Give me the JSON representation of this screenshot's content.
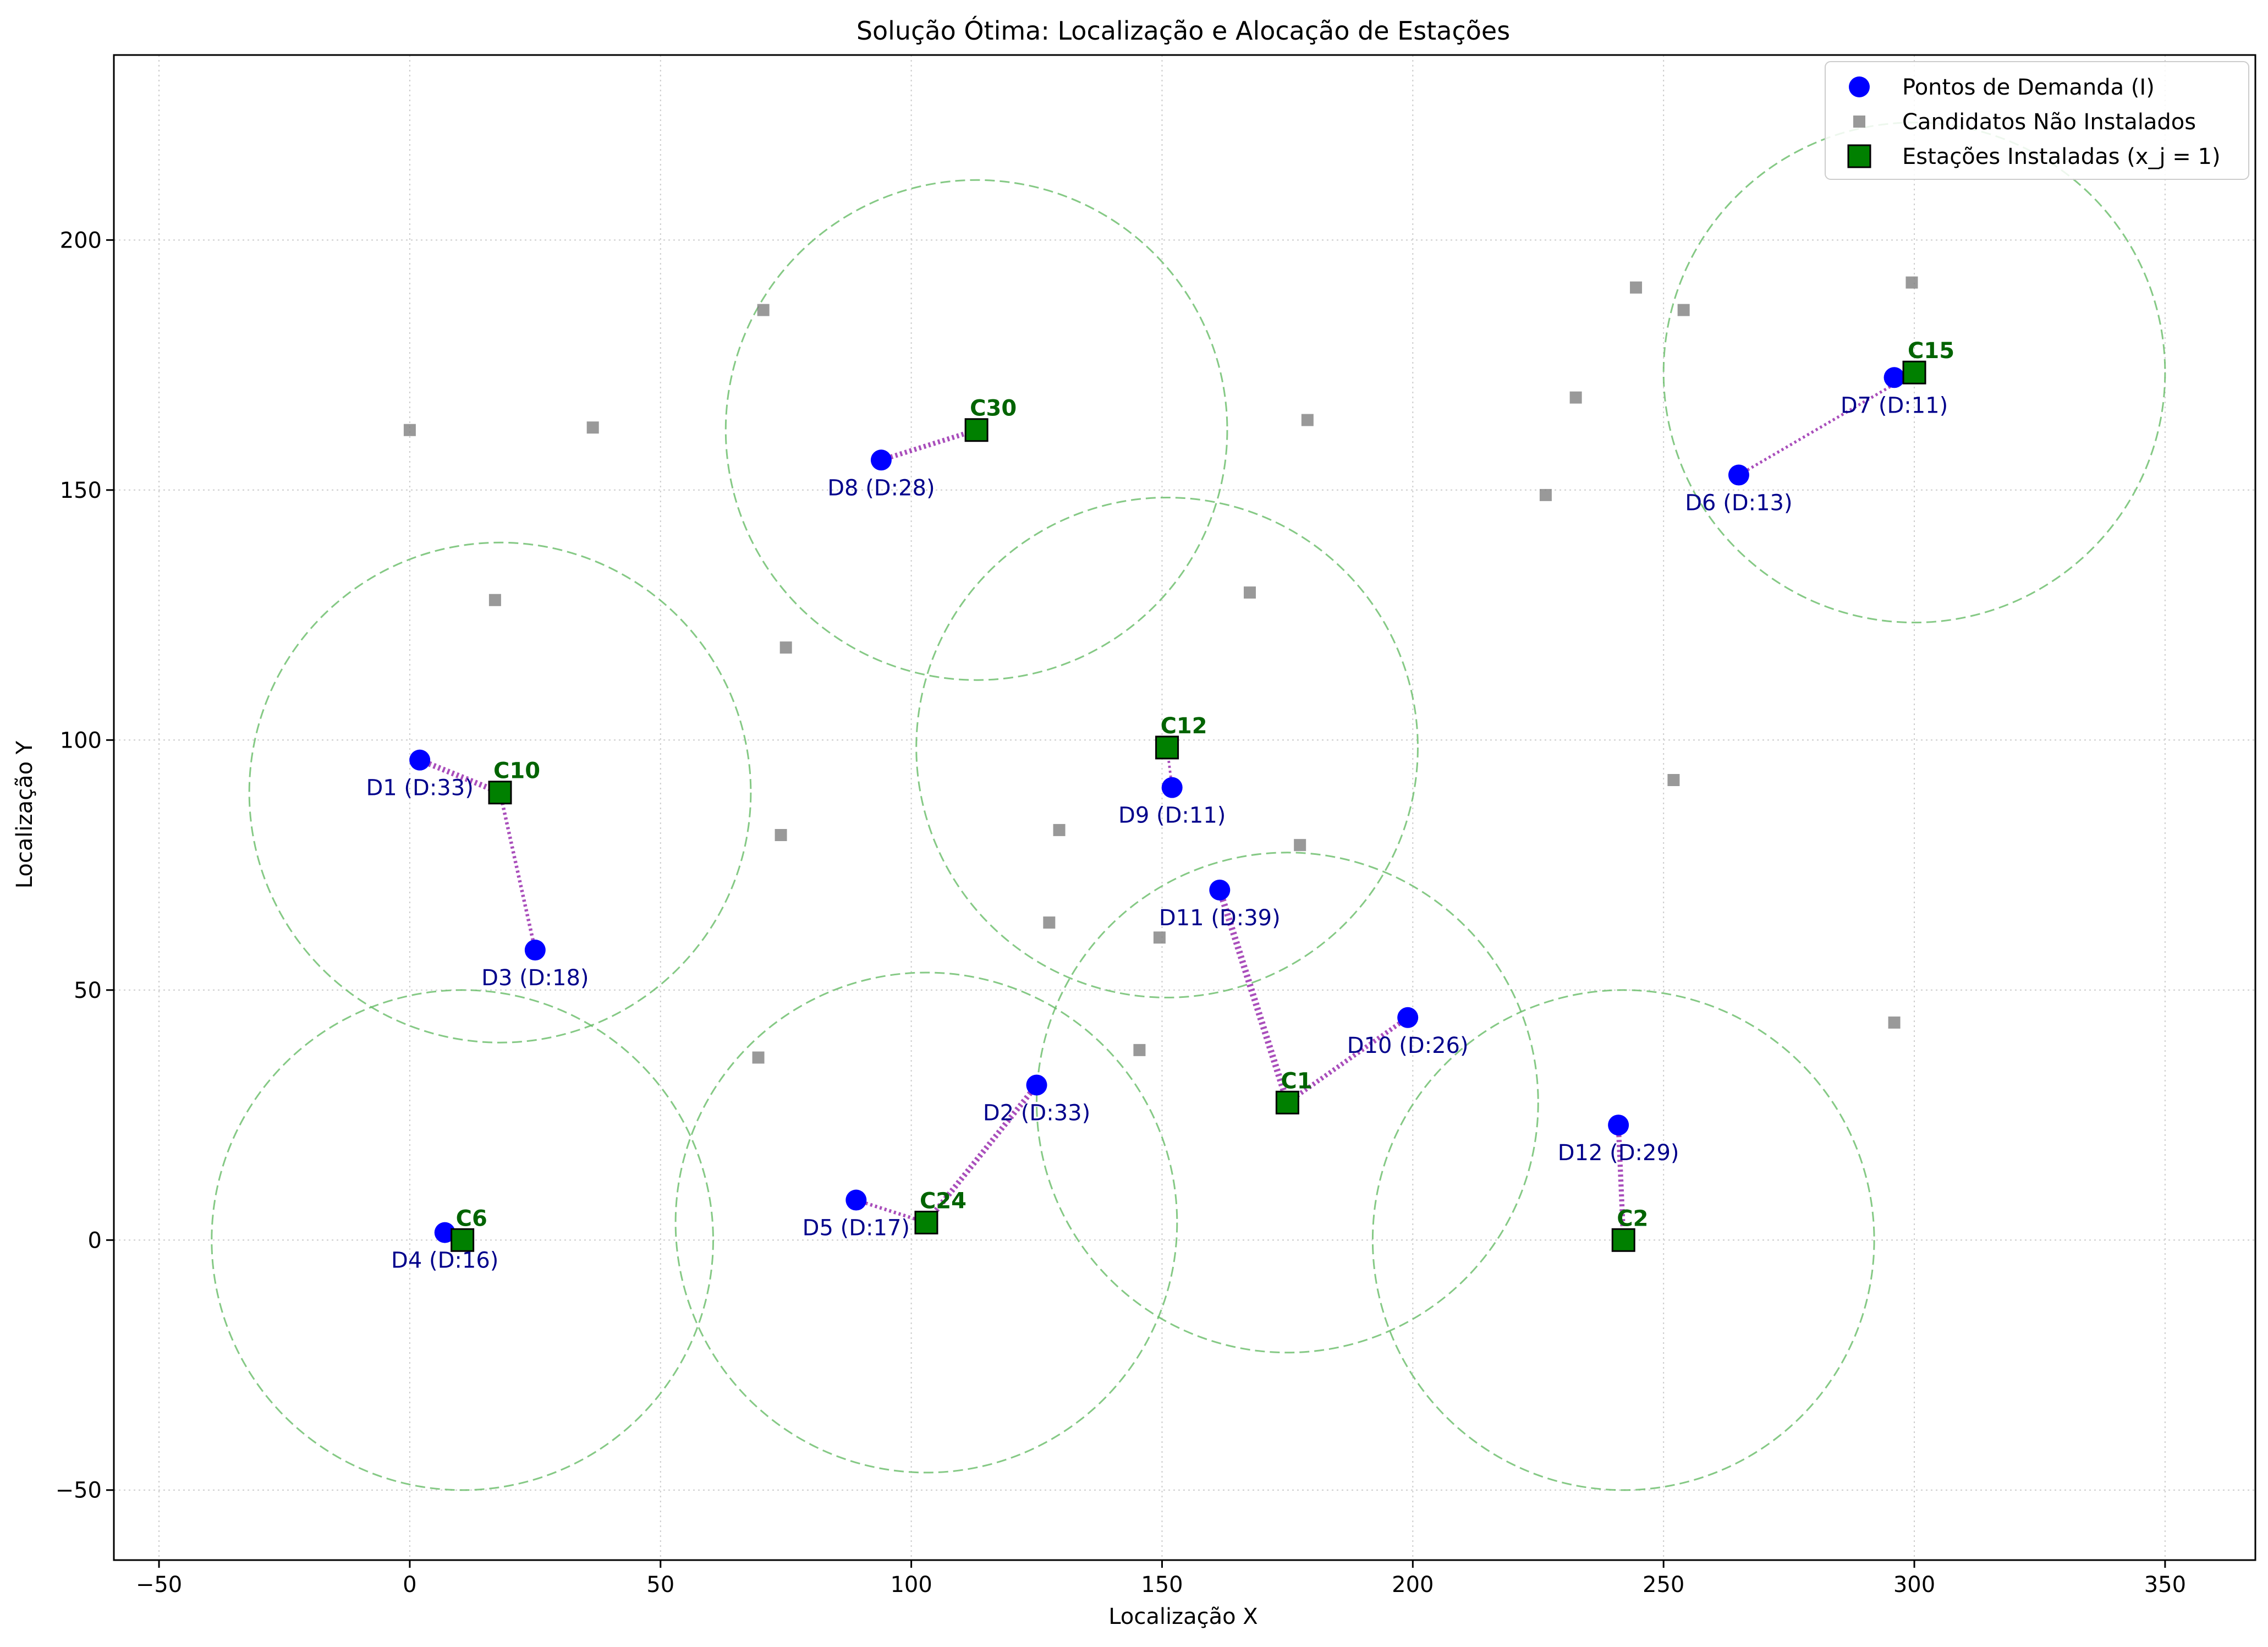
{
  "chart_data": {
    "type": "scatter",
    "title": "Solução Ótima: Localização e Alocação de Estações",
    "xlabel": "Localização X",
    "ylabel": "Localização Y",
    "xlim": [
      -59,
      368
    ],
    "ylim": [
      -64,
      237
    ],
    "xticks": [
      -50,
      0,
      50,
      100,
      150,
      200,
      250,
      300,
      350
    ],
    "yticks": [
      -50,
      0,
      50,
      100,
      150,
      200
    ],
    "grid": true,
    "legend_position": "top-right",
    "coverage_radius": 50,
    "colors": {
      "demand": "#0000ff",
      "candidate": "#808080",
      "station": "#008000",
      "station_label": "#006400",
      "demand_label": "#00008b",
      "assignment": "#9b30b0",
      "coverage": "#66bb66"
    },
    "legend": [
      {
        "key": "demand",
        "label": "Pontos de Demanda (I)"
      },
      {
        "key": "candidate",
        "label": "Candidatos Não Instalados"
      },
      {
        "key": "station",
        "label": "Estações Instaladas (x_j = 1)"
      }
    ],
    "demand_points": [
      {
        "label": "D1 (D:33)",
        "x": 2,
        "y": 96
      },
      {
        "label": "D2 (D:33)",
        "x": 125,
        "y": 31
      },
      {
        "label": "D3 (D:18)",
        "x": 25,
        "y": 58
      },
      {
        "label": "D4 (D:16)",
        "x": 7,
        "y": 1.5
      },
      {
        "label": "D5 (D:17)",
        "x": 89,
        "y": 8
      },
      {
        "label": "D6 (D:13)",
        "x": 265,
        "y": 153
      },
      {
        "label": "D7 (D:11)",
        "x": 296,
        "y": 172.5
      },
      {
        "label": "D8 (D:28)",
        "x": 94,
        "y": 156
      },
      {
        "label": "D9 (D:11)",
        "x": 152,
        "y": 90.5
      },
      {
        "label": "D10 (D:26)",
        "x": 199,
        "y": 44.5
      },
      {
        "label": "D11 (D:39)",
        "x": 161.5,
        "y": 70
      },
      {
        "label": "D12 (D:29)",
        "x": 241,
        "y": 23
      }
    ],
    "candidates": [
      {
        "x": 0,
        "y": 162
      },
      {
        "x": 36.5,
        "y": 162.5
      },
      {
        "x": 17,
        "y": 128
      },
      {
        "x": 70.5,
        "y": 186
      },
      {
        "x": 75,
        "y": 118.5
      },
      {
        "x": 74,
        "y": 81
      },
      {
        "x": 69.5,
        "y": 36.5
      },
      {
        "x": 129.5,
        "y": 82
      },
      {
        "x": 127.5,
        "y": 63.5
      },
      {
        "x": 149.5,
        "y": 60.5
      },
      {
        "x": 145.5,
        "y": 38
      },
      {
        "x": 167.5,
        "y": 129.5
      },
      {
        "x": 179,
        "y": 164
      },
      {
        "x": 177.5,
        "y": 79
      },
      {
        "x": 226.5,
        "y": 149
      },
      {
        "x": 232.5,
        "y": 168.5
      },
      {
        "x": 244.5,
        "y": 190.5
      },
      {
        "x": 254,
        "y": 186
      },
      {
        "x": 252,
        "y": 92
      },
      {
        "x": 299.5,
        "y": 191.5
      },
      {
        "x": 296,
        "y": 43.5
      }
    ],
    "stations": [
      {
        "label": "C1",
        "x": 175,
        "y": 27.5
      },
      {
        "label": "C2",
        "x": 242,
        "y": 0
      },
      {
        "label": "C6",
        "x": 10.5,
        "y": 0
      },
      {
        "label": "C10",
        "x": 18,
        "y": 89.5
      },
      {
        "label": "C12",
        "x": 151,
        "y": 98.5
      },
      {
        "label": "C15",
        "x": 300,
        "y": 173.5
      },
      {
        "label": "C24",
        "x": 103,
        "y": 3.5
      },
      {
        "label": "C30",
        "x": 113,
        "y": 162
      }
    ],
    "assignments": [
      {
        "demand": "D1 (D:33)",
        "station": "C10"
      },
      {
        "demand": "D3 (D:18)",
        "station": "C10"
      },
      {
        "demand": "D4 (D:16)",
        "station": "C6"
      },
      {
        "demand": "D5 (D:17)",
        "station": "C24"
      },
      {
        "demand": "D2 (D:33)",
        "station": "C24"
      },
      {
        "demand": "D8 (D:28)",
        "station": "C30"
      },
      {
        "demand": "D9 (D:11)",
        "station": "C12"
      },
      {
        "demand": "D11 (D:39)",
        "station": "C1"
      },
      {
        "demand": "D10 (D:26)",
        "station": "C1"
      },
      {
        "demand": "D12 (D:29)",
        "station": "C2"
      },
      {
        "demand": "D6 (D:13)",
        "station": "C15"
      },
      {
        "demand": "D7 (D:11)",
        "station": "C15"
      }
    ]
  }
}
